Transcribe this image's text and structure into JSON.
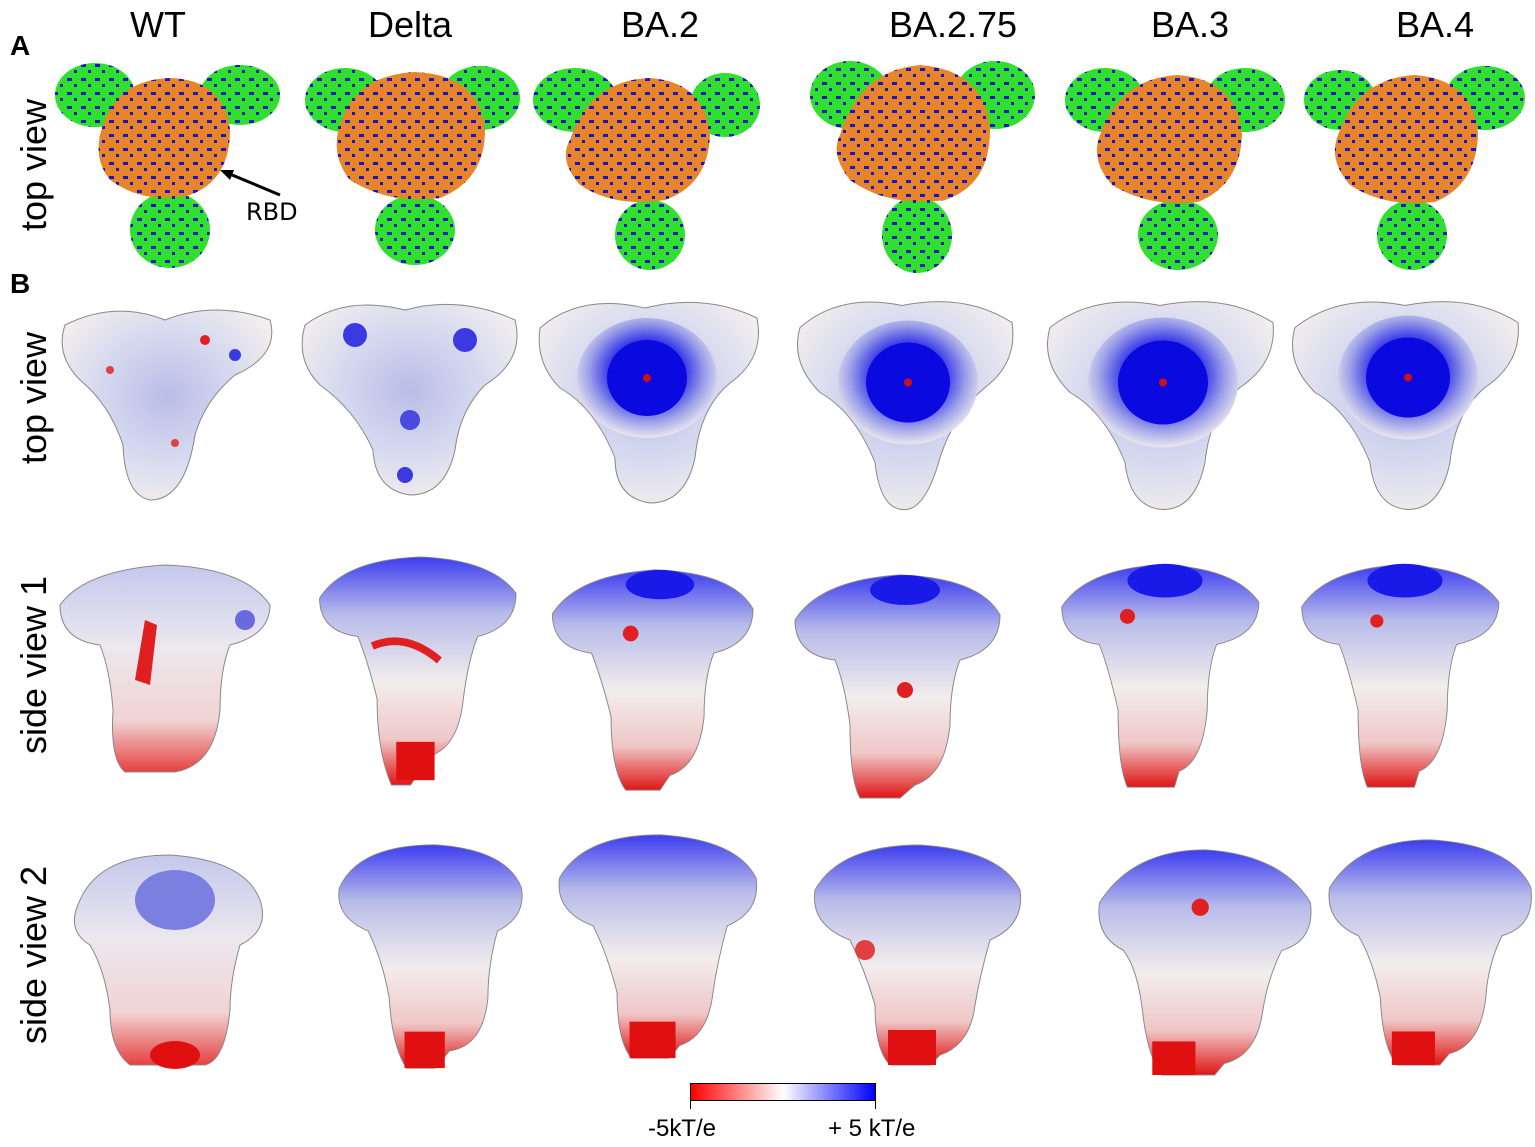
{
  "columns": [
    "WT",
    "Delta",
    "BA.2",
    "BA.2.75",
    "BA.3",
    "BA.4"
  ],
  "panels": {
    "a": "A",
    "b": "B"
  },
  "rows": {
    "r1": "top view",
    "r2": "top view",
    "r3": "side view 1",
    "r4": "side view 2"
  },
  "annotation": {
    "rbd": "RBD"
  },
  "colorbar": {
    "min_label": "-5kT/e",
    "max_label": "+ 5 kT/e",
    "colors": [
      "#ff0000",
      "#ffffff",
      "#0000ff"
    ]
  },
  "colors": {
    "rbd_orange": "#e8852a",
    "domain_green": "#2fe02f",
    "charge_blue": "#1616c8",
    "negative_red": "#e01010",
    "positive_blue": "#1e1ee0"
  }
}
